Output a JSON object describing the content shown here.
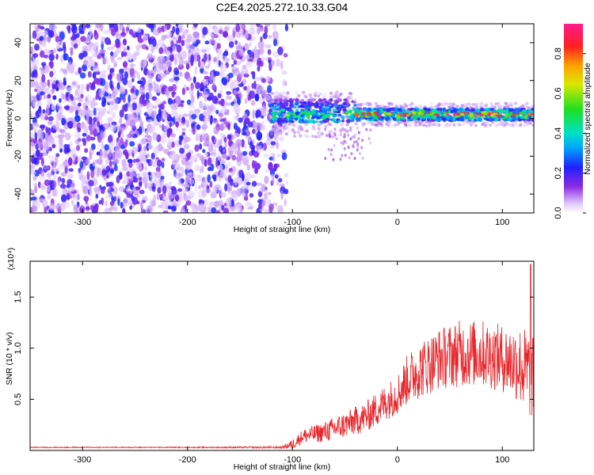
{
  "figure_title": "C2E4.2025.272.10.33.G04",
  "colors": {
    "snr_line": "#e8262b",
    "spectrogram_noise": "#7a1ff0",
    "spectrogram_light": "#d8b8ff"
  },
  "chart_data": [
    {
      "type": "heatmap",
      "name": "spectrogram",
      "title": "C2E4.2025.272.10.33.G04",
      "xlabel": "Height of straight line (km)",
      "ylabel": "Frequency (Hz)",
      "xlim": [
        -350,
        130
      ],
      "ylim": [
        -50,
        50
      ],
      "x_ticks": [
        -300,
        -200,
        -100,
        0,
        100
      ],
      "y_ticks": [
        -40,
        -20,
        0,
        20,
        40
      ],
      "colorbar": {
        "label": "Normalized spectral amplitude",
        "range": [
          0.0,
          0.95
        ],
        "ticks": [
          0.0,
          0.2,
          0.4,
          0.6,
          0.8
        ],
        "tick_labels": [
          "0.0",
          "0.2",
          "0.4",
          "0.6",
          "0.8"
        ],
        "colormap": "rainbow (white-purple-blue-cyan-green-yellow-red-magenta)"
      },
      "regions": [
        {
          "description": "broadband noise",
          "x_range": [
            -350,
            -115
          ],
          "freq_range": [
            -50,
            50
          ],
          "amplitude": 0.2
        },
        {
          "description": "signal trace",
          "x_range": [
            -120,
            130
          ],
          "freq_center": 2,
          "freq_halfwidth": 3,
          "amplitude_range": [
            0.4,
            0.95
          ]
        },
        {
          "description": "faint tail",
          "x_range": [
            -70,
            -25
          ],
          "freq_range": [
            -22,
            -5
          ],
          "amplitude": 0.1
        }
      ]
    },
    {
      "type": "line",
      "name": "snr",
      "xlabel": "Height of straight line (km)",
      "ylabel": "SNR (10 * v/v)",
      "y_multiplier_label": "(x10⁴)",
      "xlim": [
        -350,
        130
      ],
      "ylim": [
        0,
        1.85
      ],
      "x_ticks": [
        -300,
        -200,
        -100,
        0,
        100
      ],
      "y_ticks": [
        0.5,
        1.0,
        1.5
      ],
      "y_tick_labels": [
        "0.5",
        "1.0",
        "1.5"
      ],
      "series": [
        {
          "name": "SNR",
          "color": "#e8262b",
          "envelope_x": [
            -350,
            -200,
            -110,
            -100,
            -90,
            -70,
            -50,
            -30,
            -20,
            -10,
            0,
            10,
            20,
            40,
            60,
            80,
            100,
            115,
            125,
            130
          ],
          "envelope_y": [
            0.03,
            0.03,
            0.03,
            0.06,
            0.14,
            0.18,
            0.25,
            0.33,
            0.4,
            0.48,
            0.55,
            0.7,
            0.78,
            0.9,
            0.95,
            0.95,
            0.9,
            0.85,
            0.75,
            0.7
          ],
          "spread": [
            0.005,
            0.005,
            0.01,
            0.05,
            0.07,
            0.1,
            0.13,
            0.15,
            0.17,
            0.18,
            0.2,
            0.25,
            0.28,
            0.3,
            0.33,
            0.33,
            0.33,
            0.38,
            0.45,
            0.4
          ],
          "peak": {
            "x": 127,
            "y": 1.82
          }
        }
      ]
    }
  ]
}
